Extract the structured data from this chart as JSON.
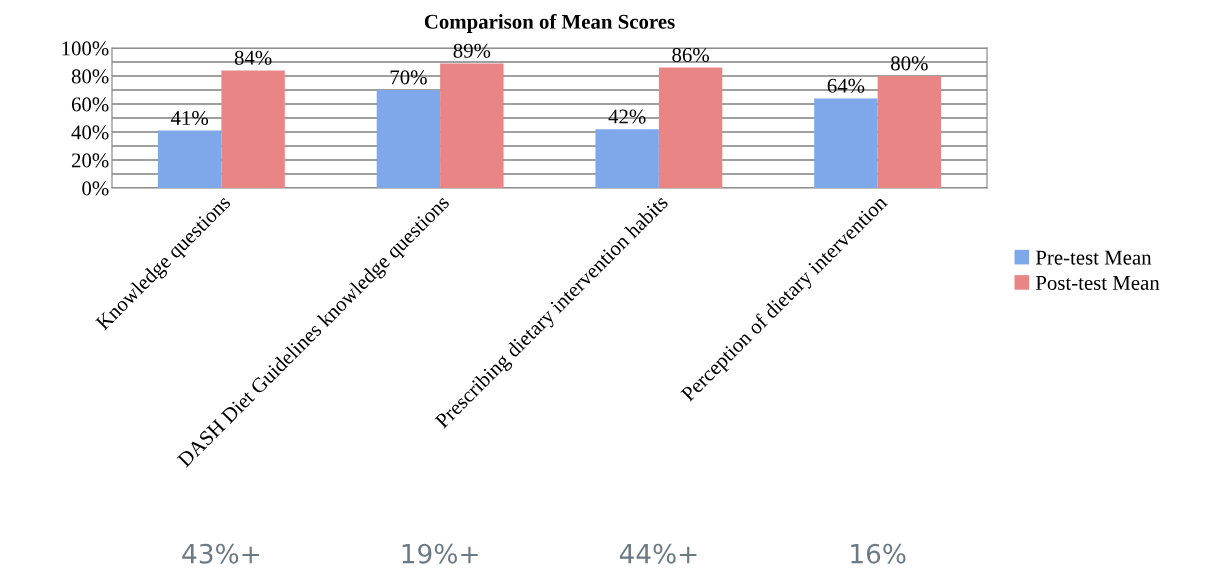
{
  "chart_data": {
    "type": "bar",
    "title": "Comparison of Mean Scores",
    "categories": [
      "Knowledge questions",
      "DASH Diet Guidelines knowledge questions",
      "Prescribing dietary intervention habits",
      "Perception of dietary intervention"
    ],
    "series": [
      {
        "name": "Pre-test Mean",
        "color": "#7fa8ea",
        "values": [
          41,
          70,
          42,
          64
        ],
        "value_labels": [
          "41%",
          "70%",
          "42%",
          "64%"
        ]
      },
      {
        "name": "Post-test Mean",
        "color": "#ea8585",
        "values": [
          84,
          89,
          86,
          80
        ],
        "value_labels": [
          "84%",
          "89%",
          "86%",
          "80%"
        ]
      }
    ],
    "ylim": [
      0,
      100
    ],
    "yticks": [
      {
        "value": 0,
        "label": "0%"
      },
      {
        "value": 10,
        "label": null
      },
      {
        "value": 20,
        "label": "20%"
      },
      {
        "value": 30,
        "label": null
      },
      {
        "value": 40,
        "label": "40%"
      },
      {
        "value": 50,
        "label": null
      },
      {
        "value": 60,
        "label": "60%"
      },
      {
        "value": 70,
        "label": null
      },
      {
        "value": 80,
        "label": "80%"
      },
      {
        "value": 90,
        "label": null
      },
      {
        "value": 100,
        "label": "100%"
      }
    ],
    "grid": "y",
    "legend": "right",
    "annotations": [
      "43%+",
      "19%+",
      "44%+",
      "16%"
    ]
  }
}
